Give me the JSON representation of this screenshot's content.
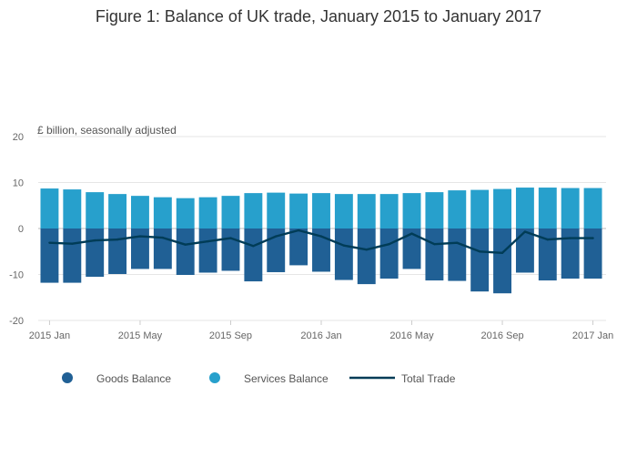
{
  "chart_data": {
    "type": "bar",
    "title": "Figure 1: Balance of UK trade, January 2015 to January 2017",
    "ylabel": "£ billion, seasonally adjusted",
    "xlabel": "",
    "ylim": [
      -20,
      20
    ],
    "yticks": [
      20,
      10,
      0,
      -10,
      -20
    ],
    "grid": true,
    "legend_position": "bottom",
    "categories": [
      "2015 Jan",
      "2015 Feb",
      "2015 Mar",
      "2015 Apr",
      "2015 May",
      "2015 Jun",
      "2015 Jul",
      "2015 Aug",
      "2015 Sep",
      "2015 Oct",
      "2015 Nov",
      "2015 Dec",
      "2016 Jan",
      "2016 Feb",
      "2016 Mar",
      "2016 Apr",
      "2016 May",
      "2016 Jun",
      "2016 Jul",
      "2016 Aug",
      "2016 Sep",
      "2016 Oct",
      "2016 Nov",
      "2016 Dec",
      "2017 Jan"
    ],
    "xtick_labels": [
      {
        "index": 0,
        "label": "2015 Jan"
      },
      {
        "index": 4,
        "label": "2015 May"
      },
      {
        "index": 8,
        "label": "2015 Sep"
      },
      {
        "index": 12,
        "label": "2016 Jan"
      },
      {
        "index": 16,
        "label": "2016 May"
      },
      {
        "index": 20,
        "label": "2016 Sep"
      },
      {
        "index": 24,
        "label": "2017 Jan"
      }
    ],
    "series": [
      {
        "name": "Goods Balance",
        "type": "bar",
        "color": "#206095",
        "values": [
          -11.8,
          -11.8,
          -10.5,
          -9.9,
          -8.8,
          -8.8,
          -10.1,
          -9.6,
          -9.2,
          -11.5,
          -9.5,
          -8.0,
          -9.4,
          -11.2,
          -12.1,
          -10.9,
          -8.8,
          -11.3,
          -11.4,
          -13.7,
          -14.1,
          -9.6,
          -11.3,
          -10.9,
          -10.9
        ]
      },
      {
        "name": "Services Balance",
        "type": "bar",
        "color": "#27a0cc",
        "values": [
          8.7,
          8.5,
          7.9,
          7.5,
          7.1,
          6.8,
          6.6,
          6.8,
          7.1,
          7.7,
          7.8,
          7.6,
          7.7,
          7.5,
          7.5,
          7.5,
          7.7,
          7.9,
          8.3,
          8.4,
          8.6,
          8.9,
          8.9,
          8.8,
          8.8
        ]
      },
      {
        "name": "Total Trade",
        "type": "line",
        "color": "#003c57",
        "values": [
          -3.1,
          -3.3,
          -2.6,
          -2.4,
          -1.7,
          -2.0,
          -3.5,
          -2.8,
          -2.1,
          -3.8,
          -1.7,
          -0.4,
          -1.7,
          -3.7,
          -4.6,
          -3.4,
          -1.1,
          -3.4,
          -3.1,
          -5.0,
          -5.3,
          -0.7,
          -2.4,
          -2.1,
          -2.1
        ]
      }
    ]
  }
}
